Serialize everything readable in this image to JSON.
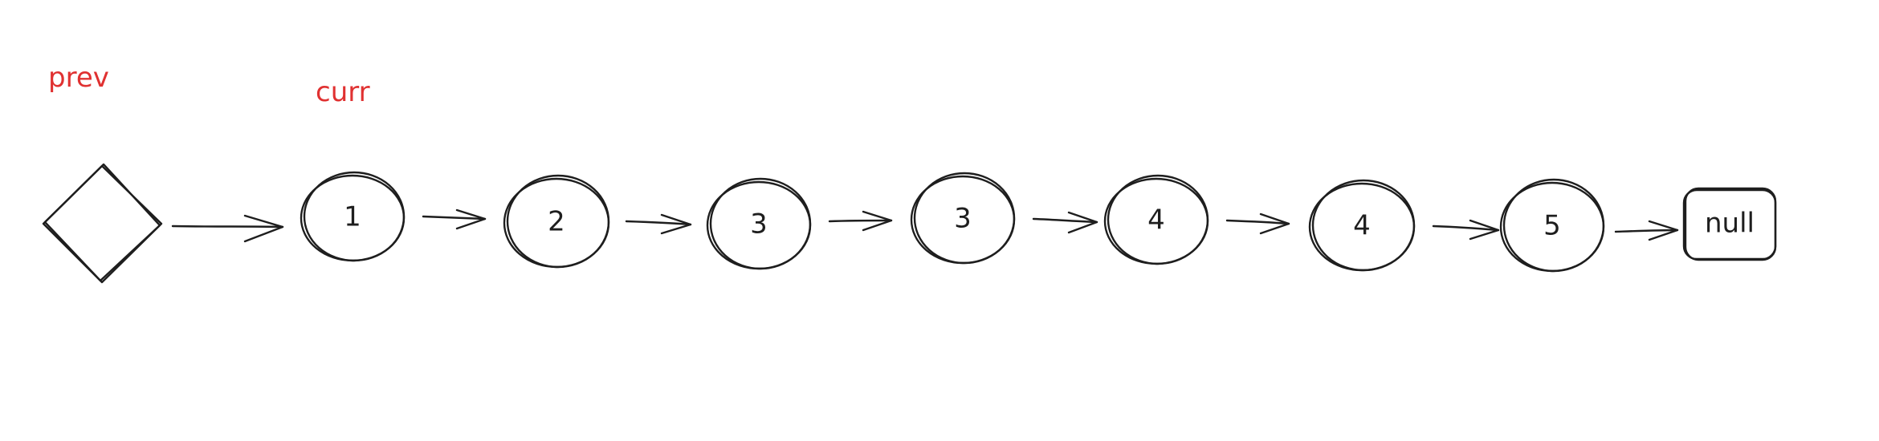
{
  "pointers": {
    "prev": "prev",
    "curr": "curr"
  },
  "nodes": [
    {
      "value": "1"
    },
    {
      "value": "2"
    },
    {
      "value": "3"
    },
    {
      "value": "3"
    },
    {
      "value": "4"
    },
    {
      "value": "4"
    },
    {
      "value": "5"
    }
  ],
  "terminal": {
    "label": "null"
  },
  "colors": {
    "pointer_text": "#e03131",
    "stroke": "#1e1e1e",
    "background": "#ffffff"
  }
}
